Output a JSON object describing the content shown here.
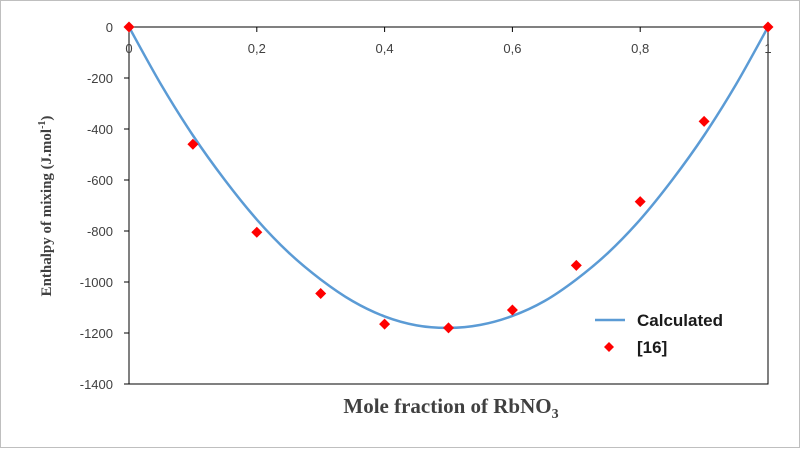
{
  "chart_data": {
    "type": "scatter",
    "xlabel": "Mole fraction of RbNO",
    "xlabel_subscript": "3",
    "ylabel": "Enthalpy of mixing (J.mol",
    "ylabel_superscript": "-1",
    "ylabel_suffix": ")",
    "xlim": [
      0,
      1
    ],
    "ylim": [
      -1400,
      0
    ],
    "x_ticks": [
      0,
      0.2,
      0.4,
      0.6,
      0.8,
      1
    ],
    "x_tick_labels": [
      "0",
      "0,2",
      "0,4",
      "0,6",
      "0,8",
      "1"
    ],
    "y_ticks": [
      0,
      -200,
      -400,
      -600,
      -800,
      -1000,
      -1200,
      -1400
    ],
    "y_tick_labels": [
      "0",
      "-200",
      "-400",
      "-600",
      "-800",
      "-1000",
      "-1200",
      "-1400"
    ],
    "grid": false,
    "legend_position": "bottom-right",
    "series": [
      {
        "name": "Calculated",
        "kind": "line",
        "color": "#5b9bd5",
        "x": [
          0,
          0.05,
          0.1,
          0.15,
          0.2,
          0.25,
          0.3,
          0.35,
          0.4,
          0.45,
          0.5,
          0.55,
          0.6,
          0.65,
          0.7,
          0.75,
          0.8,
          0.85,
          0.9,
          0.95,
          1
        ],
        "y": [
          0,
          -225,
          -425,
          -600,
          -755,
          -885,
          -990,
          -1075,
          -1135,
          -1170,
          -1180,
          -1168,
          -1133,
          -1075,
          -990,
          -885,
          -755,
          -600,
          -425,
          -225,
          0
        ]
      },
      {
        "name": "[16]",
        "kind": "scatter",
        "color": "#ff0000",
        "marker": "diamond",
        "x": [
          0,
          0.1,
          0.2,
          0.3,
          0.4,
          0.5,
          0.6,
          0.7,
          0.8,
          0.9,
          1
        ],
        "y": [
          0,
          -460,
          -805,
          -1045,
          -1165,
          -1180,
          -1110,
          -935,
          -685,
          -370,
          0
        ]
      }
    ]
  }
}
